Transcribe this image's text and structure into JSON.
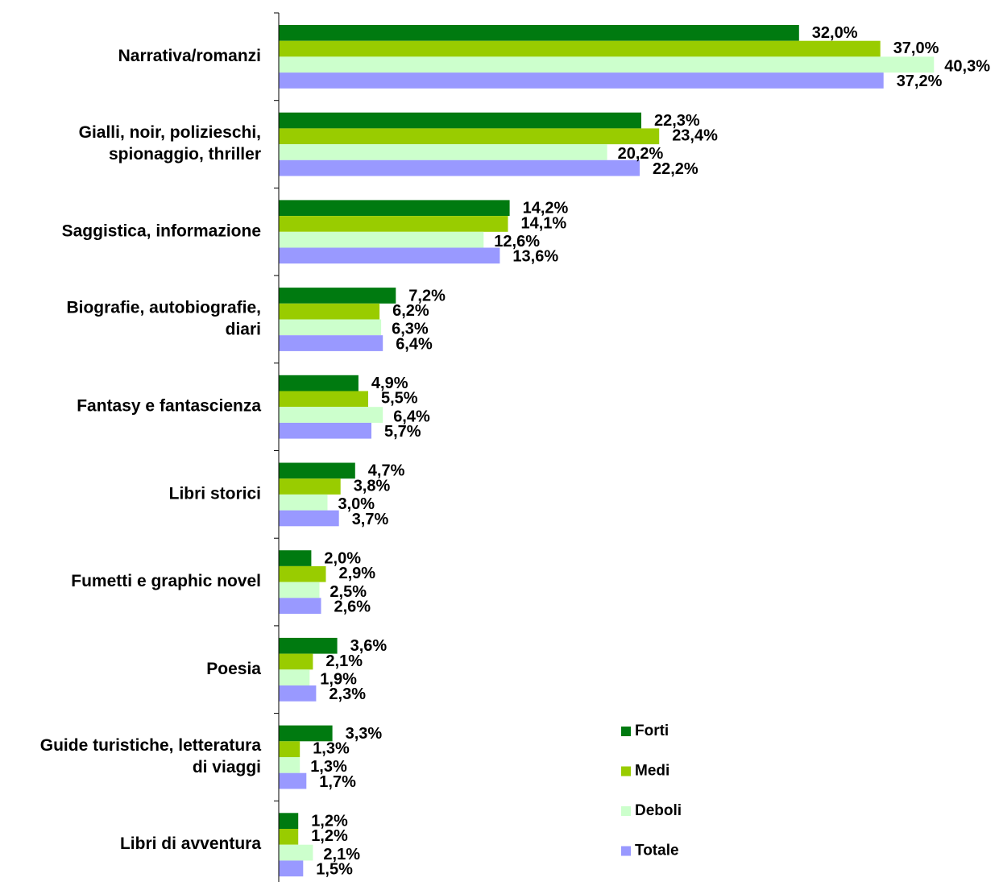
{
  "chart_data": {
    "type": "bar",
    "orientation": "horizontal",
    "categories": [
      [
        "Narrativa/romanzi"
      ],
      [
        "Gialli, noir, polizieschi,",
        "spionaggio, thriller"
      ],
      [
        "Saggistica, informazione"
      ],
      [
        "Biografie, autobiografie,",
        "diari"
      ],
      [
        "Fantasy e fantascienza"
      ],
      [
        "Libri storici"
      ],
      [
        "Fumetti e graphic novel"
      ],
      [
        "Poesia"
      ],
      [
        "Guide turistiche, letteratura",
        "di viaggi"
      ],
      [
        "Libri di avventura"
      ]
    ],
    "series": [
      {
        "name": "Forti",
        "color": "#007a10",
        "values": [
          32.0,
          22.3,
          14.2,
          7.2,
          4.9,
          4.7,
          2.0,
          3.6,
          3.3,
          1.2
        ],
        "labels": [
          "32,0%",
          "22,3%",
          "14,2%",
          "7,2%",
          "4,9%",
          "4,7%",
          "2,0%",
          "3,6%",
          "3,3%",
          "1,2%"
        ]
      },
      {
        "name": "Medi",
        "color": "#99cc00",
        "values": [
          37.0,
          23.4,
          14.1,
          6.2,
          5.5,
          3.8,
          2.9,
          2.1,
          1.3,
          1.2
        ],
        "labels": [
          "37,0%",
          "23,4%",
          "14,1%",
          "6,2%",
          "5,5%",
          "3,8%",
          "2,9%",
          "2,1%",
          "1,3%",
          "1,2%"
        ]
      },
      {
        "name": "Deboli",
        "color": "#ccffcc",
        "values": [
          40.3,
          20.2,
          12.6,
          6.3,
          6.4,
          3.0,
          2.5,
          1.9,
          1.3,
          2.1
        ],
        "labels": [
          "40,3%",
          "20,2%",
          "12,6%",
          "6,3%",
          "6,4%",
          "3,0%",
          "2,5%",
          "1,9%",
          "1,3%",
          "2,1%"
        ]
      },
      {
        "name": "Totale",
        "color": "#9999ff",
        "values": [
          37.2,
          22.2,
          13.6,
          6.4,
          5.7,
          3.7,
          2.6,
          2.3,
          1.7,
          1.5
        ],
        "labels": [
          "37,2%",
          "22,2%",
          "13,6%",
          "6,4%",
          "5,7%",
          "3,7%",
          "2,6%",
          "2,3%",
          "1,7%",
          "1,5%"
        ]
      }
    ],
    "xlim": [
      0,
      45
    ],
    "grid": false,
    "legend": "bottom-right"
  }
}
